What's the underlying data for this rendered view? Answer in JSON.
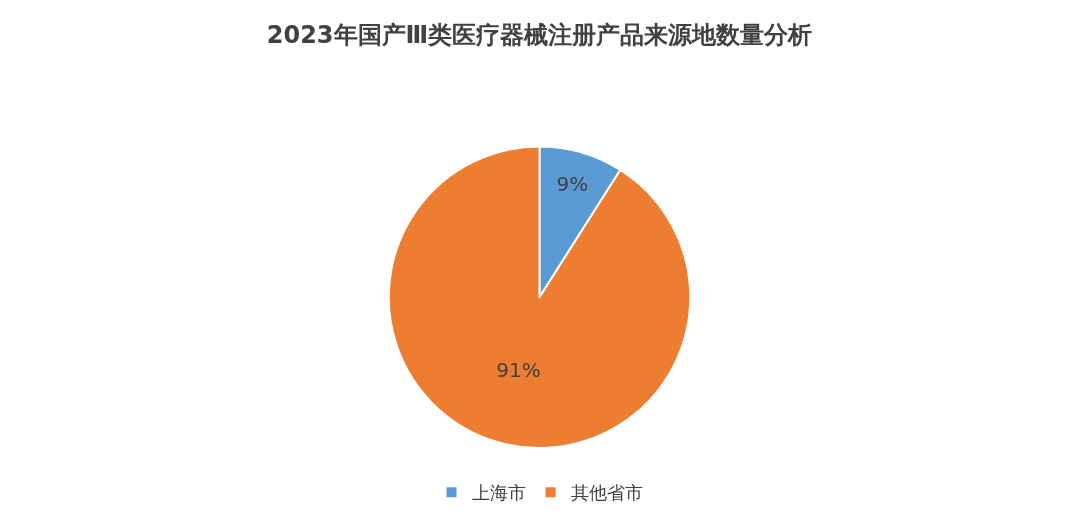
{
  "chart_data": {
    "type": "pie",
    "title": "2023年国产Ⅲ类医疗器械注册产品来源地数量分析",
    "categories": [
      "上海市",
      "其他省市"
    ],
    "values": [
      9,
      91
    ],
    "colors": [
      "#5b9bd5",
      "#ed7d31"
    ],
    "value_labels": [
      "9%",
      "91%"
    ],
    "legend": "bottom"
  }
}
